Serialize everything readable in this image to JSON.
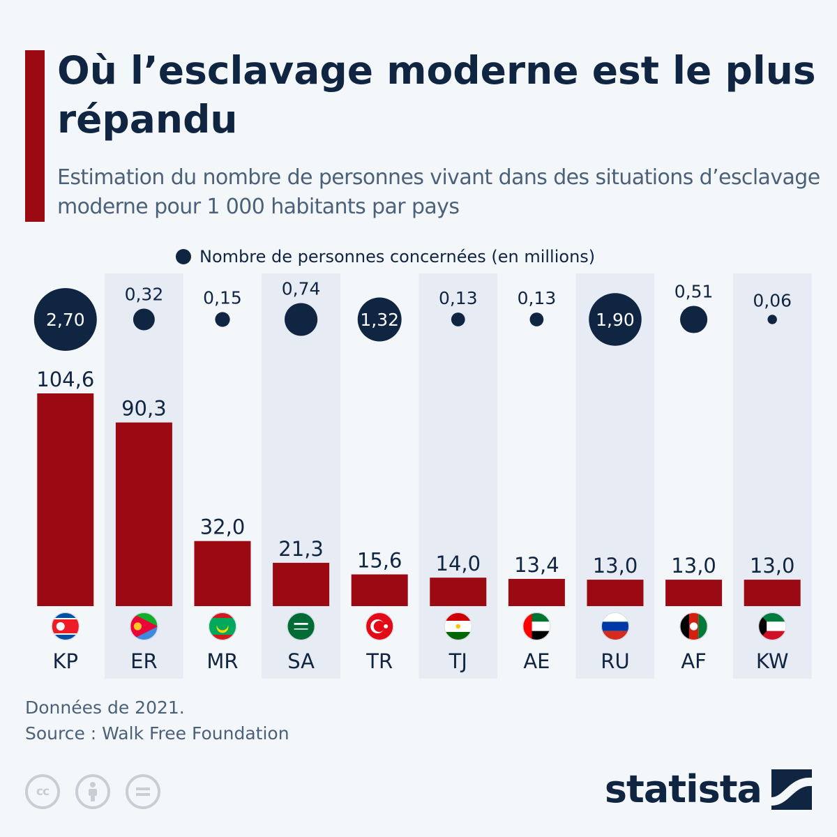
{
  "header": {
    "title": "Où l’esclavage moderne est le plus répandu",
    "subtitle": "Estimation du nombre de personnes vivant dans des situations d’esclavage moderne pour 1 000 habitants par pays"
  },
  "legend": {
    "label": "Nombre de personnes concernées (en millions)"
  },
  "chart_data": {
    "type": "bar",
    "title": "Où l’esclavage moderne est le plus répandu",
    "subtitle": "Estimation du nombre de personnes vivant dans des situations d’esclavage moderne pour 1 000 habitants par pays",
    "categories": [
      "KP",
      "ER",
      "MR",
      "SA",
      "TR",
      "TJ",
      "AE",
      "RU",
      "AF",
      "KW"
    ],
    "series": [
      {
        "values": [
          104.6,
          90.3,
          32.0,
          21.3,
          15.6,
          14.0,
          13.4,
          13.0,
          13.0,
          13.0
        ]
      }
    ],
    "value_labels": [
      "104,6",
      "90,3",
      "32,0",
      "21,3",
      "15,6",
      "14,0",
      "13,4",
      "13,0",
      "13,0",
      "13,0"
    ],
    "bubbles": {
      "name": "Nombre de personnes concernées (en millions)",
      "values": [
        2.7,
        0.32,
        0.15,
        0.74,
        1.32,
        0.13,
        0.13,
        1.9,
        0.51,
        0.06
      ],
      "labels": [
        "2,70",
        "0,32",
        "0,15",
        "0,74",
        "1,32",
        "0,13",
        "0,13",
        "1,90",
        "0,51",
        "0,06"
      ]
    },
    "ylim": [
      0,
      110
    ],
    "grid": false,
    "legend_position": "top",
    "colors": {
      "bar": "#9b0a13",
      "bubble": "#0f2542",
      "band": "#e6ebf4"
    }
  },
  "flags": [
    {
      "country": "KP",
      "icon": "north-korea-flag-icon"
    },
    {
      "country": "ER",
      "icon": "eritrea-flag-icon"
    },
    {
      "country": "MR",
      "icon": "mauritania-flag-icon"
    },
    {
      "country": "SA",
      "icon": "saudi-arabia-flag-icon"
    },
    {
      "country": "TR",
      "icon": "turkey-flag-icon"
    },
    {
      "country": "TJ",
      "icon": "tajikistan-flag-icon"
    },
    {
      "country": "AE",
      "icon": "uae-flag-icon"
    },
    {
      "country": "RU",
      "icon": "russia-flag-icon"
    },
    {
      "country": "AF",
      "icon": "afghanistan-flag-icon"
    },
    {
      "country": "KW",
      "icon": "kuwait-flag-icon"
    }
  ],
  "footer": {
    "note": "Données de 2021.",
    "source": "Source : Walk Free Foundation",
    "license_icons": [
      "cc-icon",
      "attribution-icon",
      "no-derivatives-icon"
    ],
    "brand": "statista"
  }
}
